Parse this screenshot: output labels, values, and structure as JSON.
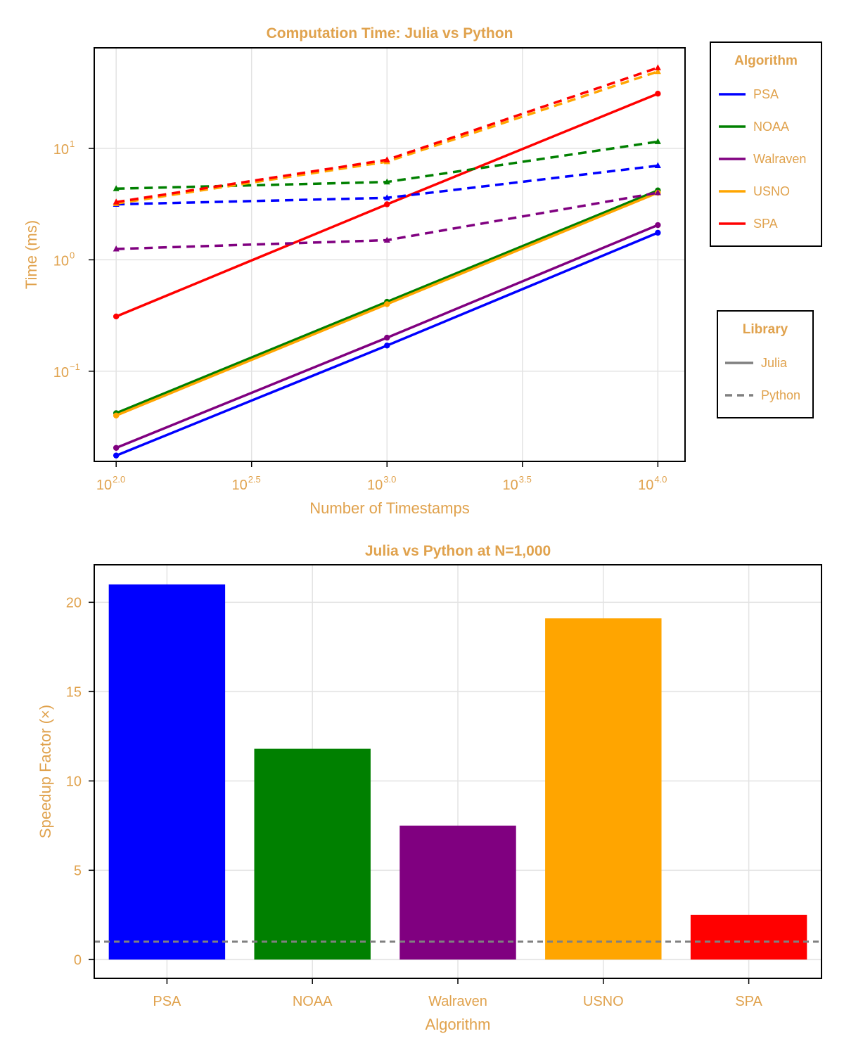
{
  "colors": {
    "text": "#e0a24d",
    "grid": "#e3e3e3",
    "PSA": "#0000ff",
    "NOAA": "#008000",
    "Walraven": "#800080",
    "USNO": "#ffa500",
    "SPA": "#ff0000",
    "library_legend": "#808080",
    "reference_line": "#808080"
  },
  "chart_data": [
    {
      "type": "line",
      "title": "Computation Time: Julia vs Python",
      "xlabel": "Number of Timestamps",
      "ylabel": "Time (ms)",
      "xscale": "log",
      "yscale": "log",
      "x": [
        100,
        1000,
        10000
      ],
      "xticks": [
        {
          "base": "10",
          "exp": "2.0",
          "value": 100
        },
        {
          "base": "10",
          "exp": "2.5",
          "value": 316.23
        },
        {
          "base": "10",
          "exp": "3.0",
          "value": 1000
        },
        {
          "base": "10",
          "exp": "3.5",
          "value": 3162.28
        },
        {
          "base": "10",
          "exp": "4.0",
          "value": 10000
        }
      ],
      "yticks": [
        {
          "base": "10",
          "exp": "1",
          "value": 10
        },
        {
          "base": "10",
          "exp": "0",
          "value": 1
        },
        {
          "base": "10",
          "exp": "−1",
          "value": 0.1
        }
      ],
      "xlim": [
        83,
        12600
      ],
      "ylim": [
        0.0155,
        80
      ],
      "grid": true,
      "legends": [
        {
          "title": "Algorithm",
          "position": "right-top",
          "entries": [
            "PSA",
            "NOAA",
            "Walraven",
            "USNO",
            "SPA"
          ]
        },
        {
          "title": "Library",
          "position": "right-middle",
          "entries": [
            {
              "label": "Julia",
              "style": "solid"
            },
            {
              "label": "Python",
              "style": "dashed"
            }
          ]
        }
      ],
      "series": [
        {
          "name": "PSA",
          "library": "Julia",
          "values": [
            0.0175,
            0.17,
            1.75
          ]
        },
        {
          "name": "NOAA",
          "library": "Julia",
          "values": [
            0.042,
            0.42,
            4.2
          ]
        },
        {
          "name": "Walraven",
          "library": "Julia",
          "values": [
            0.0205,
            0.2,
            2.05
          ]
        },
        {
          "name": "USNO",
          "library": "Julia",
          "values": [
            0.04,
            0.4,
            4.0
          ]
        },
        {
          "name": "SPA",
          "library": "Julia",
          "values": [
            0.31,
            3.15,
            31
          ]
        },
        {
          "name": "PSA",
          "library": "Python",
          "values": [
            3.15,
            3.6,
            7.0
          ]
        },
        {
          "name": "NOAA",
          "library": "Python",
          "values": [
            4.35,
            5.0,
            11.5
          ]
        },
        {
          "name": "Walraven",
          "library": "Python",
          "values": [
            1.25,
            1.5,
            4.0
          ]
        },
        {
          "name": "USNO",
          "library": "Python",
          "values": [
            3.2,
            7.6,
            49
          ]
        },
        {
          "name": "SPA",
          "library": "Python",
          "values": [
            3.3,
            7.9,
            53
          ]
        }
      ]
    },
    {
      "type": "bar",
      "title": "Julia vs Python at N=1,000",
      "xlabel": "Algorithm",
      "ylabel": "Speedup Factor (×)",
      "categories": [
        "PSA",
        "NOAA",
        "Walraven",
        "USNO",
        "SPA"
      ],
      "values": [
        21.0,
        11.8,
        7.5,
        19.1,
        2.5
      ],
      "yticks": [
        0,
        5,
        10,
        15,
        20
      ],
      "ylim": [
        -1.05,
        22.1
      ],
      "reference_line": {
        "y": 1,
        "style": "dashed"
      },
      "grid": true
    }
  ]
}
